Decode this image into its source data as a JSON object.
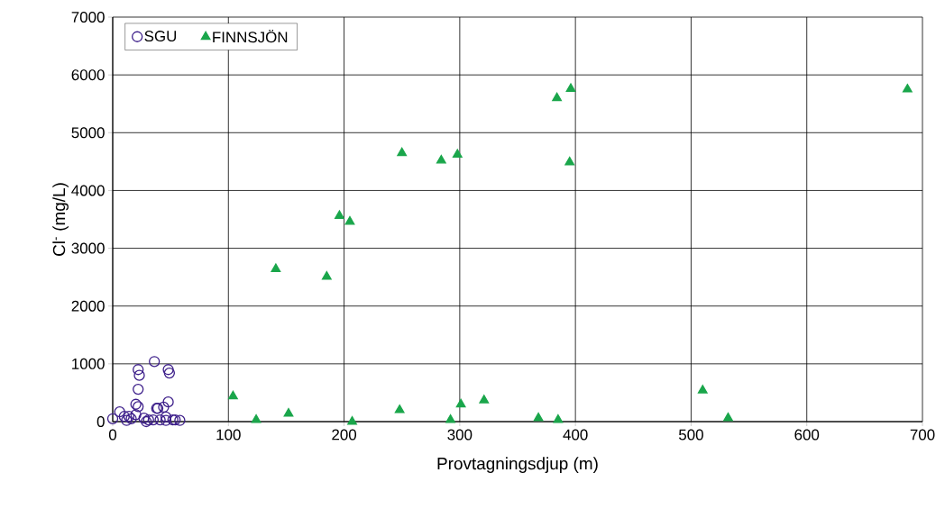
{
  "chart_data": {
    "type": "scatter",
    "xlabel": "Provtagningsdjup (m)",
    "ylabel": "Cl$^{-}$ (mg/L)",
    "xlim": [
      0,
      700
    ],
    "ylim": [
      0,
      7000
    ],
    "xticks": [
      0,
      100,
      200,
      300,
      400,
      500,
      600,
      700
    ],
    "yticks": [
      0,
      1000,
      2000,
      3000,
      4000,
      5000,
      6000,
      7000
    ],
    "grid": true,
    "legend": "top left",
    "series": [
      {
        "name": "SGU",
        "color": "#3d1f8a",
        "marker": "circle",
        "x": [
          0,
          6,
          10,
          12,
          14,
          16,
          20,
          20,
          22,
          22,
          22,
          23,
          27,
          29,
          31,
          35,
          36,
          38,
          39,
          41,
          44,
          46,
          46,
          48,
          48,
          49,
          52,
          54,
          58
        ],
        "values": [
          50,
          170,
          90,
          20,
          90,
          50,
          120,
          300,
          260,
          560,
          900,
          800,
          60,
          0,
          30,
          30,
          1040,
          230,
          230,
          30,
          250,
          80,
          20,
          340,
          900,
          840,
          30,
          30,
          20
        ]
      },
      {
        "name": "FINNSJÖN",
        "color": "#1aa64b",
        "marker": "triangle",
        "x": [
          104,
          124,
          152,
          141,
          185,
          196,
          205,
          207,
          248,
          250,
          284,
          298,
          292,
          301,
          321,
          368,
          384,
          385,
          396,
          395,
          510,
          532,
          687
        ],
        "values": [
          440,
          30,
          140,
          2640,
          2510,
          3560,
          3460,
          0,
          200,
          4650,
          4520,
          4620,
          30,
          300,
          370,
          60,
          5600,
          30,
          5760,
          4490,
          540,
          60,
          5750
        ]
      }
    ]
  }
}
